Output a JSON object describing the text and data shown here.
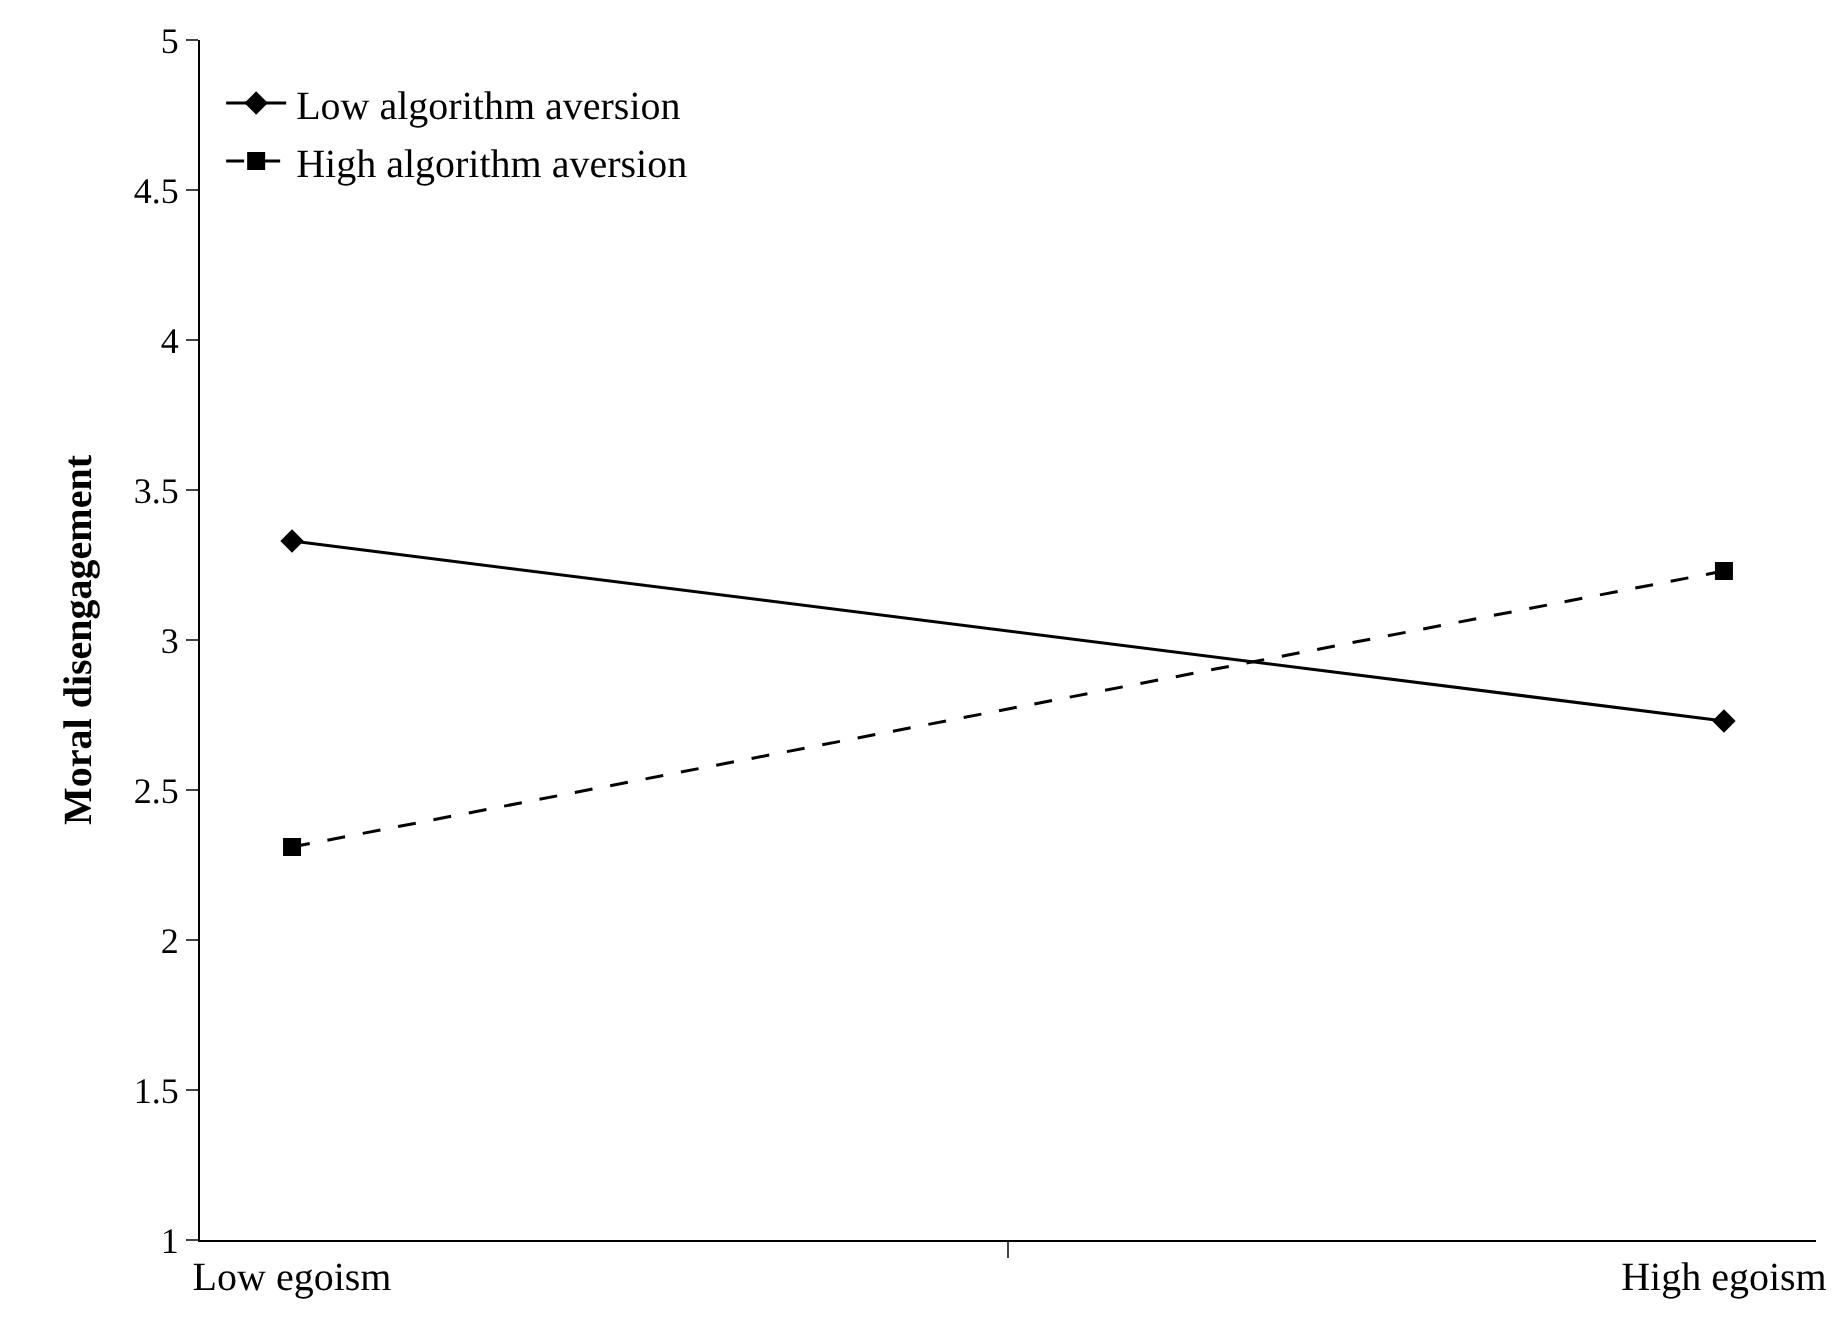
{
  "chart_data": {
    "type": "line",
    "ylabel": "Moral disengagement",
    "categories": [
      "Low egoism",
      "High egoism"
    ],
    "series": [
      {
        "name": "Low algorithm aversion",
        "color": "#000000",
        "values": [
          3.33,
          2.73
        ],
        "marker": "diamond",
        "line_style": "solid"
      },
      {
        "name": "High algorithm aversion",
        "color": "#000000",
        "values": [
          2.31,
          3.23
        ],
        "marker": "square",
        "line_style": "dashed"
      }
    ],
    "ylim": [
      1,
      5
    ],
    "yticks": [
      1,
      1.5,
      2,
      2.5,
      3,
      3.5,
      4,
      4.5,
      5
    ],
    "legend": "top left"
  }
}
